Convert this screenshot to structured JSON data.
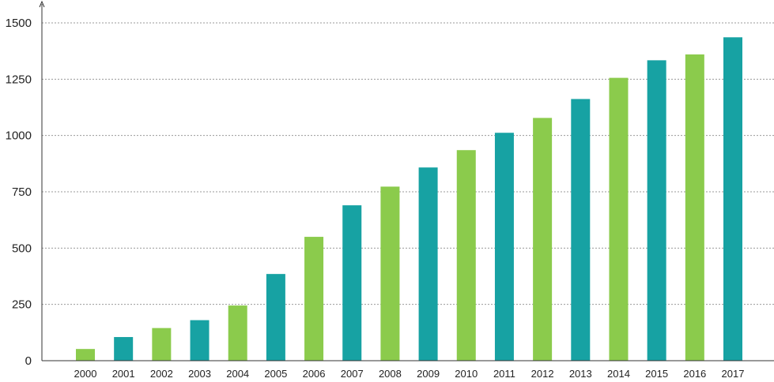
{
  "colors": {
    "green": "#8bcb4c",
    "teal": "#17a2a3"
  },
  "chart_data": {
    "type": "bar",
    "title": "",
    "xlabel": "",
    "ylabel": "",
    "categories": [
      "2000",
      "2001",
      "2002",
      "2003",
      "2004",
      "2005",
      "2006",
      "2007",
      "2008",
      "2009",
      "2010",
      "2011",
      "2012",
      "2013",
      "2014",
      "2015",
      "2016",
      "2017"
    ],
    "values": [
      52,
      105,
      145,
      180,
      245,
      385,
      550,
      690,
      773,
      858,
      935,
      1012,
      1078,
      1162,
      1256,
      1334,
      1360,
      1436
    ],
    "bar_colors": [
      "green",
      "teal",
      "green",
      "teal",
      "green",
      "teal",
      "green",
      "teal",
      "green",
      "teal",
      "green",
      "teal",
      "green",
      "teal",
      "green",
      "teal",
      "green",
      "teal"
    ],
    "ylim": [
      0,
      1500
    ],
    "yticks": [
      0,
      250,
      500,
      750,
      1000,
      1250,
      1500
    ],
    "grid": true,
    "legend": "none"
  }
}
